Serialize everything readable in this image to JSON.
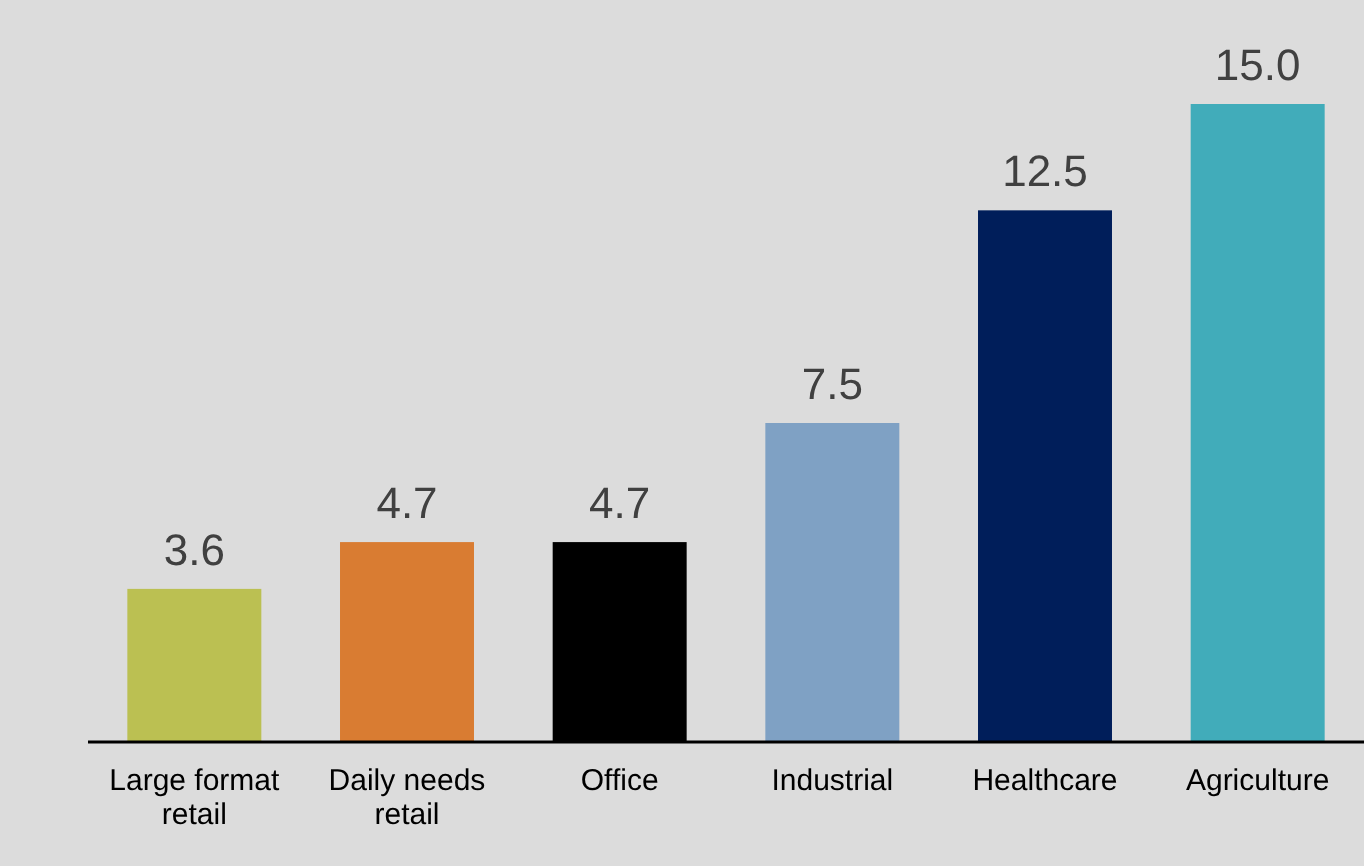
{
  "chart_data": {
    "type": "bar",
    "categories": [
      "Large format retail",
      "Daily needs retail",
      "Office",
      "Industrial",
      "Healthcare",
      "Agriculture"
    ],
    "values": [
      3.6,
      4.7,
      4.7,
      7.5,
      12.5,
      15.0
    ],
    "colors": [
      "#bbc052",
      "#d97c32",
      "#000000",
      "#7fa1c4",
      "#001e5a",
      "#41acba"
    ],
    "value_labels": [
      "3.6",
      "4.7",
      "4.7",
      "7.5",
      "12.5",
      "15.0"
    ]
  }
}
